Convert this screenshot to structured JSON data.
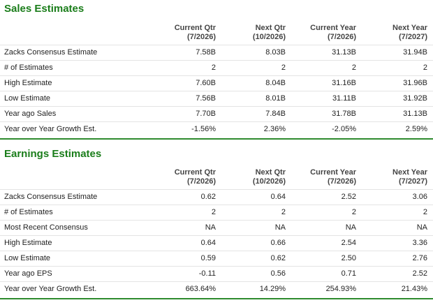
{
  "sales": {
    "title": "Sales Estimates",
    "columns": [
      {
        "line1": "Current Qtr",
        "line2": "(7/2026)"
      },
      {
        "line1": "Next Qtr",
        "line2": "(10/2026)"
      },
      {
        "line1": "Current Year",
        "line2": "(7/2026)"
      },
      {
        "line1": "Next Year",
        "line2": "(7/2027)"
      }
    ],
    "rows": [
      {
        "label": "Zacks Consensus Estimate",
        "values": [
          "7.58B",
          "8.03B",
          "31.13B",
          "31.94B"
        ]
      },
      {
        "label": "# of Estimates",
        "values": [
          "2",
          "2",
          "2",
          "2"
        ]
      },
      {
        "label": "High Estimate",
        "values": [
          "7.60B",
          "8.04B",
          "31.16B",
          "31.96B"
        ]
      },
      {
        "label": "Low Estimate",
        "values": [
          "7.56B",
          "8.01B",
          "31.11B",
          "31.92B"
        ]
      },
      {
        "label": "Year ago Sales",
        "values": [
          "7.70B",
          "7.84B",
          "31.78B",
          "31.13B"
        ]
      },
      {
        "label": "Year over Year Growth Est.",
        "values": [
          "-1.56%",
          "2.36%",
          "-2.05%",
          "2.59%"
        ]
      }
    ]
  },
  "earnings": {
    "title": "Earnings Estimates",
    "columns": [
      {
        "line1": "Current Qtr",
        "line2": "(7/2026)"
      },
      {
        "line1": "Next Qtr",
        "line2": "(10/2026)"
      },
      {
        "line1": "Current Year",
        "line2": "(7/2026)"
      },
      {
        "line1": "Next Year",
        "line2": "(7/2027)"
      }
    ],
    "rows": [
      {
        "label": "Zacks Consensus Estimate",
        "values": [
          "0.62",
          "0.64",
          "2.52",
          "3.06"
        ]
      },
      {
        "label": "# of Estimates",
        "values": [
          "2",
          "2",
          "2",
          "2"
        ]
      },
      {
        "label": "Most Recent Consensus",
        "values": [
          "NA",
          "NA",
          "NA",
          "NA"
        ]
      },
      {
        "label": "High Estimate",
        "values": [
          "0.64",
          "0.66",
          "2.54",
          "3.36"
        ]
      },
      {
        "label": "Low Estimate",
        "values": [
          "0.59",
          "0.62",
          "2.50",
          "2.76"
        ]
      },
      {
        "label": "Year ago EPS",
        "values": [
          "-0.11",
          "0.56",
          "0.71",
          "2.52"
        ]
      },
      {
        "label": "Year over Year Growth Est.",
        "values": [
          "663.64%",
          "14.29%",
          "254.93%",
          "21.43%"
        ]
      }
    ]
  },
  "colors": {
    "heading": "#1a7d1a",
    "separator": "#2e8b2e",
    "row_border": "#e4e4e4"
  }
}
